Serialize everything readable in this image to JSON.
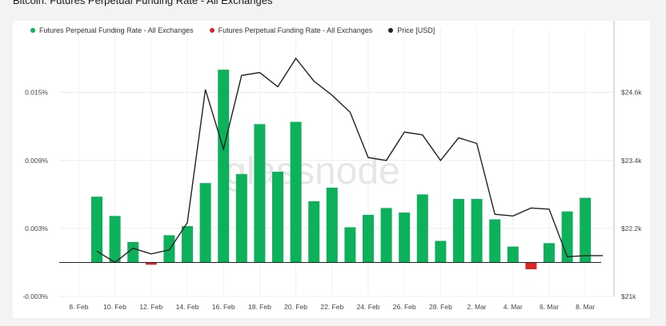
{
  "title": "Bitcoin: Futures Perpetual Funding Rate - All Exchanges",
  "watermark": "glassnode",
  "legend": [
    {
      "label": "Futures Perpetual Funding Rate - All Exchanges",
      "color": "#0eb15b"
    },
    {
      "label": "Futures Perpetual Funding Rate - All Exchanges",
      "color": "#e02424"
    },
    {
      "label": "Price [USD]",
      "color": "#222222"
    }
  ],
  "chart_data": {
    "type": "bar",
    "x_ticks": [
      "8. Feb",
      "10. Feb",
      "12. Feb",
      "14. Feb",
      "16. Feb",
      "18. Feb",
      "20. Feb",
      "22. Feb",
      "24. Feb",
      "26. Feb",
      "28. Feb",
      "2. Mar",
      "4. Mar",
      "6. Mar",
      "8. Mar"
    ],
    "categories": [
      "9 Feb",
      "10 Feb",
      "11 Feb",
      "12 Feb",
      "13 Feb",
      "14 Feb",
      "15 Feb",
      "16 Feb",
      "17 Feb",
      "18 Feb",
      "19 Feb",
      "20 Feb",
      "21 Feb",
      "22 Feb",
      "23 Feb",
      "24 Feb",
      "25 Feb",
      "26 Feb",
      "27 Feb",
      "28 Feb",
      "1 Mar",
      "2 Mar",
      "3 Mar",
      "4 Mar",
      "5 Mar",
      "6 Mar",
      "7 Mar",
      "8 Mar"
    ],
    "series": [
      {
        "name": "Futures Perpetual Funding Rate - All Exchanges",
        "axis": "left",
        "values": [
          0.0058,
          0.0041,
          0.0018,
          -0.0002,
          0.0024,
          0.0032,
          0.007,
          0.017,
          0.0078,
          0.0122,
          0.008,
          0.0124,
          0.0054,
          0.0066,
          0.0031,
          0.0042,
          0.0048,
          0.0044,
          0.006,
          0.0019,
          0.0056,
          0.0056,
          0.0038,
          0.0014,
          -0.0006,
          0.0017,
          0.0045,
          0.0057
        ],
        "positive_color": "#0eb15b",
        "negative_color": "#e02424"
      },
      {
        "name": "Price [USD]",
        "axis": "right",
        "type": "line",
        "color": "#222222",
        "values": [
          21800,
          21600,
          21850,
          21750,
          21820,
          22300,
          24650,
          23600,
          24900,
          24950,
          24700,
          25200,
          24800,
          24550,
          24250,
          23450,
          23400,
          23900,
          23850,
          23400,
          23800,
          23700,
          22450,
          22420,
          22560,
          22540,
          21700,
          21720
        ]
      }
    ],
    "y_left": {
      "ticks": [
        "0.015%",
        "0.009%",
        "0.003%",
        "-0.003%"
      ],
      "tick_values": [
        0.015,
        0.009,
        0.003,
        -0.003
      ],
      "range": [
        -0.003,
        0.0185
      ]
    },
    "y_right": {
      "ticks": [
        "$24.6k",
        "$23.4k",
        "$22.2k",
        "$21k"
      ],
      "tick_values": [
        24600,
        23400,
        22200,
        21000
      ],
      "range": [
        21000,
        25300
      ]
    },
    "grid": true,
    "legend_position": "top-left"
  }
}
